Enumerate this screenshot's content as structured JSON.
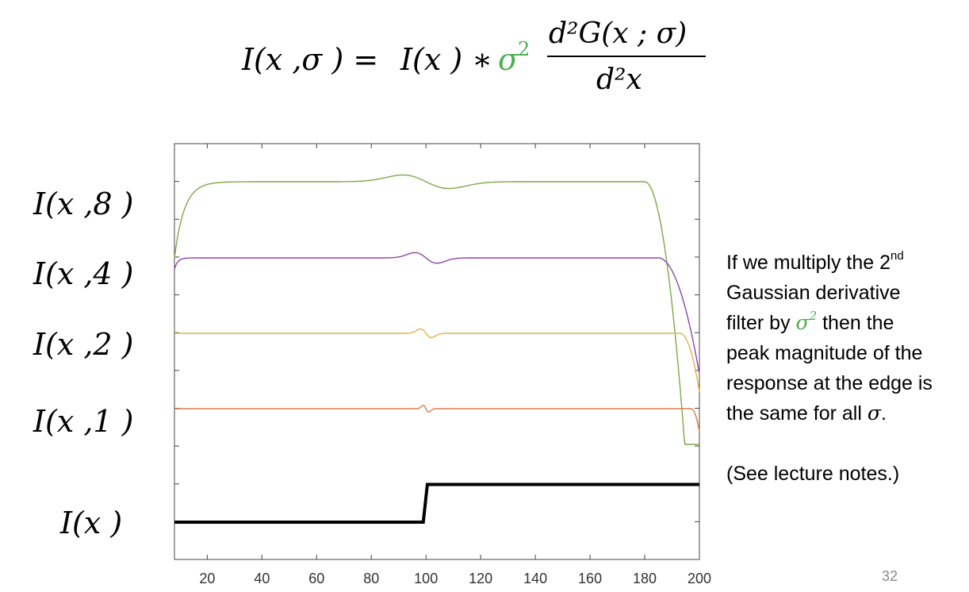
{
  "equation": {
    "lhs": "I(x ,σ ) =",
    "rhs_image": "I(x ) ∗",
    "weight": "σ",
    "weight_exponent": "2",
    "numerator": "d²G(x ; σ)",
    "denominator": "d²x",
    "weight_color": "#4caf50"
  },
  "side_text": {
    "line1_pre": "If we multiply the 2",
    "line1_sup": "nd",
    "line2": "Gaussian derivative",
    "line3_pre": "filter by ",
    "line3_sigma": "σ",
    "line3_exp": "2",
    "line3_post": " then the",
    "line4": "peak magnitude of the",
    "line5": "response at the edge is",
    "line6_pre": "the same for all ",
    "line6_sigma": "σ",
    "line6_post": ".",
    "note": "(See lecture notes.)"
  },
  "slide_number": "32",
  "chart_data": {
    "type": "line",
    "title": "",
    "xlabel": "",
    "ylabel": "",
    "xlim": [
      8,
      200
    ],
    "x_ticks": [
      20,
      40,
      60,
      80,
      100,
      120,
      140,
      160,
      180,
      200
    ],
    "edge_position": 100,
    "grid": false,
    "row_labels": [
      "I(x ,8 )",
      "I(x ,4 )",
      "I(x ,2 )",
      "I(x ,1 )",
      "I(x )"
    ],
    "series": [
      {
        "sigma": 8,
        "color": "#7fa84a",
        "baseline_x_start": 8,
        "plateau_level": 1.0,
        "edge_amplitude": 0.25,
        "right_falloff_x": 192
      },
      {
        "sigma": 4,
        "color": "#8e44ad",
        "baseline_x_start": 8,
        "plateau_level": 1.0,
        "edge_amplitude": 0.25,
        "right_falloff_x": 196
      },
      {
        "sigma": 2,
        "color": "#e3b448",
        "baseline_x_start": 8,
        "plateau_level": 1.0,
        "edge_amplitude": 0.25,
        "right_falloff_x": 198
      },
      {
        "sigma": 1,
        "color": "#d97b4a",
        "baseline_x_start": 8,
        "plateau_level": 1.0,
        "edge_amplitude": 0.25,
        "right_falloff_x": 199
      },
      {
        "sigma": 0,
        "color": "#000000",
        "type": "step",
        "low": 0,
        "high": 1,
        "step_x": 100
      }
    ]
  }
}
